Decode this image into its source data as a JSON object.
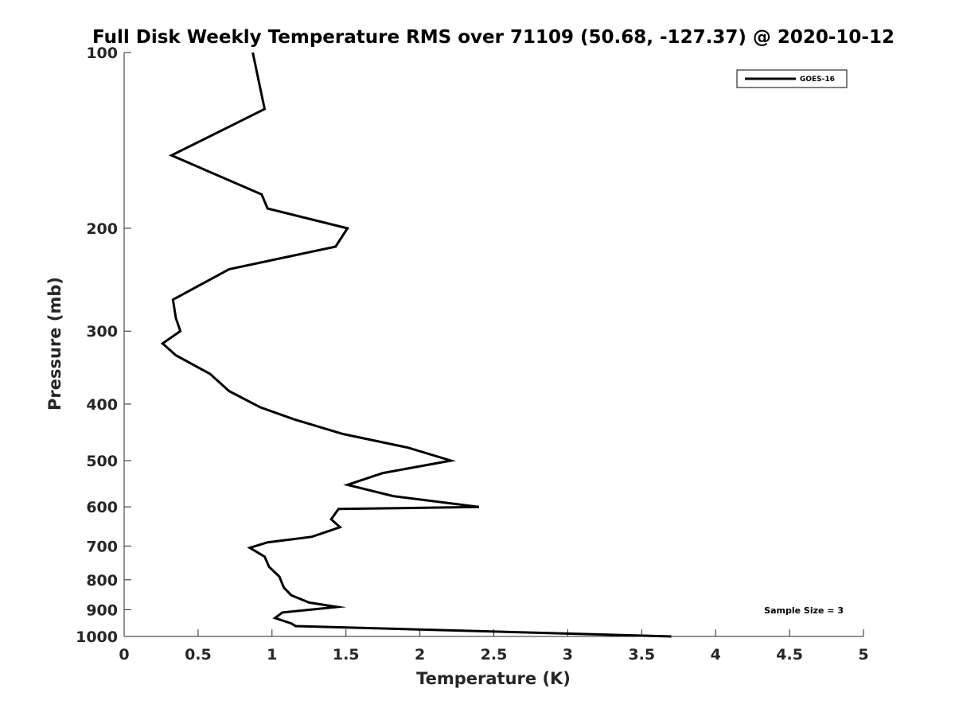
{
  "chart_data": {
    "type": "line",
    "title": "Full Disk Weekly Temperature RMS over 71109 (50.68, -127.37) @ 2020-10-12",
    "xlabel": "Temperature (K)",
    "ylabel": "Pressure (mb)",
    "xlim": [
      0,
      5
    ],
    "ylim": [
      100,
      1000
    ],
    "y_scale": "log",
    "y_reversed": true,
    "x_ticks": [
      "0",
      "0.5",
      "1",
      "1.5",
      "2",
      "2.5",
      "3",
      "3.5",
      "4",
      "4.5",
      "5"
    ],
    "y_ticks": [
      "100",
      "200",
      "300",
      "400",
      "500",
      "600",
      "700",
      "800",
      "900",
      "1000"
    ],
    "legend_position": "top-right",
    "annotation": "Sample Size = 3",
    "line_color": "#000000",
    "series": [
      {
        "name": "GOES-16",
        "x": [
          0.87,
          0.95,
          0.32,
          0.93,
          0.97,
          1.51,
          1.43,
          0.71,
          0.33,
          0.35,
          0.38,
          0.26,
          0.35,
          0.58,
          0.71,
          0.92,
          1.15,
          1.48,
          1.92,
          2.21,
          1.75,
          1.51,
          1.82,
          2.4,
          1.45,
          1.4,
          1.46,
          1.27,
          0.97,
          0.85,
          0.95,
          0.98,
          1.05,
          1.08,
          1.13,
          1.25,
          1.44,
          1.07,
          1.02,
          1.13,
          1.16,
          3.7
        ],
        "y": [
          100,
          125,
          150,
          175,
          185,
          200,
          215,
          235,
          265,
          285,
          300,
          315,
          330,
          355,
          380,
          405,
          425,
          450,
          475,
          500,
          525,
          550,
          575,
          600,
          605,
          630,
          650,
          675,
          690,
          705,
          730,
          760,
          790,
          825,
          850,
          875,
          890,
          910,
          930,
          950,
          960,
          1000
        ]
      }
    ]
  }
}
